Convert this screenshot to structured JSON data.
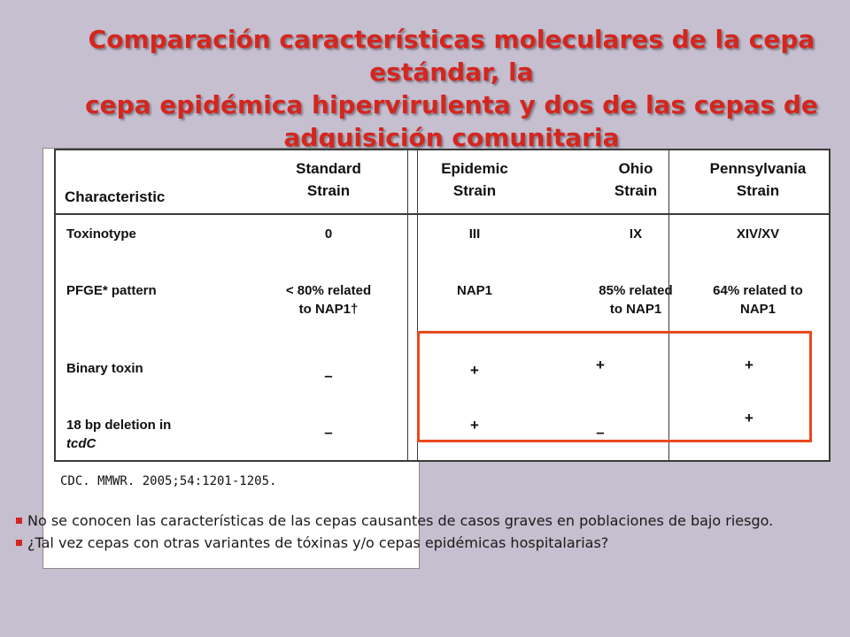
{
  "title": {
    "line1": "Comparación características moleculares de la cepa estándar, la",
    "line2": "cepa epidémica hipervirulenta y dos de las cepas de",
    "line3": "adquisición comunitaria"
  },
  "table": {
    "headers": {
      "characteristic": "Characteristic",
      "standard": [
        "Standard",
        "Strain"
      ],
      "epidemic": [
        "Epidemic",
        "Strain"
      ],
      "ohio": [
        "Ohio",
        "Strain"
      ],
      "pennsylvania": [
        "Pennsylvania",
        "Strain"
      ]
    },
    "rows": [
      {
        "label": "Toxinotype",
        "standard": "0",
        "epidemic": "III",
        "ohio": "IX",
        "pennsylvania": "XIV/XV"
      },
      {
        "label": "PFGE* pattern",
        "standard": [
          "< 80% related",
          "to NAP1†"
        ],
        "epidemic": "NAP1",
        "ohio": [
          "85% related",
          "to NAP1"
        ],
        "pennsylvania": [
          "64% related to",
          "NAP1"
        ]
      },
      {
        "label": "Binary toxin",
        "standard": "–",
        "epidemic": "+",
        "ohio": "+",
        "pennsylvania": "+"
      },
      {
        "label": [
          "18 bp deletion in",
          "tcdC"
        ],
        "standard": "–",
        "epidemic": "+",
        "ohio": "–",
        "pennsylvania": "+"
      }
    ]
  },
  "citation": "CDC. MMWR. 2005;54:1201-1205.",
  "bullets": [
    "No se conocen las características de las cepas causantes de casos graves en poblaciones de bajo riesgo.",
    "¿Tal vez cepas con otras variantes de tóxinas y/o cepas epidémicas hospitalarias?"
  ],
  "colors": {
    "title": "#d4261f",
    "highlight_box": "#e8491e",
    "background": "#c5bfcf"
  }
}
